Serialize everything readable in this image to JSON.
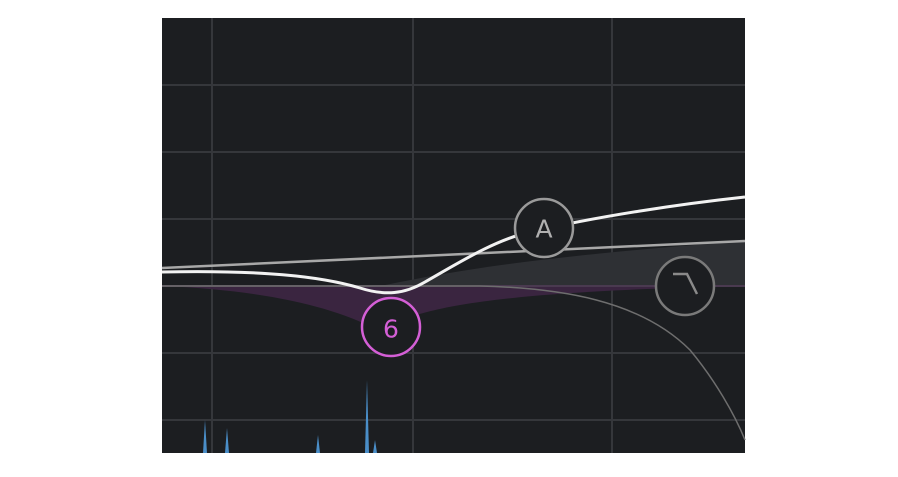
{
  "eq_display": {
    "background": "#1c1e21",
    "grid_color": "#3a3c40",
    "nodes": [
      {
        "id": "node-a",
        "label": "A",
        "color": "#9a9a9a"
      },
      {
        "id": "node-6",
        "label": "6",
        "color": "#d45fd6"
      },
      {
        "id": "node-lowpass",
        "icon": "low-pass-filter-icon",
        "color": "#8a8a8a"
      }
    ],
    "colors": {
      "main_curve": "#f2f2f2",
      "band_curve": "#a8a8a8",
      "band_6_fill": "#4a2a4e",
      "spectrum": "#4a8ec8"
    }
  }
}
